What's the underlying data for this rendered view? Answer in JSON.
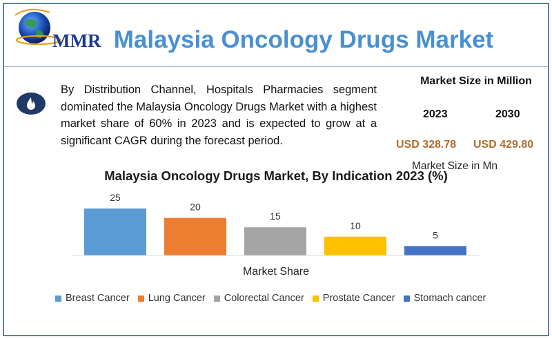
{
  "header": {
    "logo_text": "MMR",
    "title": "Malaysia Oncology Drugs Market"
  },
  "summary": {
    "icon": "flame-icon",
    "text": "By Distribution Channel, Hospitals Pharmacies segment dominated the Malaysia Oncology Drugs Market with a highest market share of 60% in 2023 and is expected to grow at a significant CAGR during the forecast period."
  },
  "market_size": {
    "heading": "Market Size in Million",
    "year_a": "2023",
    "year_b": "2030",
    "value_a": "USD 328.78",
    "value_b": "USD 429.80",
    "unit_label": "Market Size in Mn"
  },
  "colors": {
    "title_blue": "#4a90d0",
    "value_brown": "#b36b2e",
    "frame": "#5b7ea8"
  },
  "chart_data": {
    "type": "bar",
    "title": "Malaysia Oncology Drugs Market, By Indication 2023 (%)",
    "xlabel": "Market Share",
    "ylabel": "",
    "categories": [
      "Breast Cancer",
      "Lung Cancer",
      "Colorectal Cancer",
      "Prostate Cancer",
      "Stomach cancer"
    ],
    "values": [
      25,
      20,
      15,
      10,
      5
    ],
    "value_labels": [
      "25",
      "20",
      "15",
      "10",
      "5"
    ],
    "colors": [
      "#5b9bd5",
      "#ed7d31",
      "#a5a5a5",
      "#ffc000",
      "#4472c4"
    ],
    "ylim": [
      0,
      25
    ],
    "grid": false,
    "legend": "bottom"
  }
}
